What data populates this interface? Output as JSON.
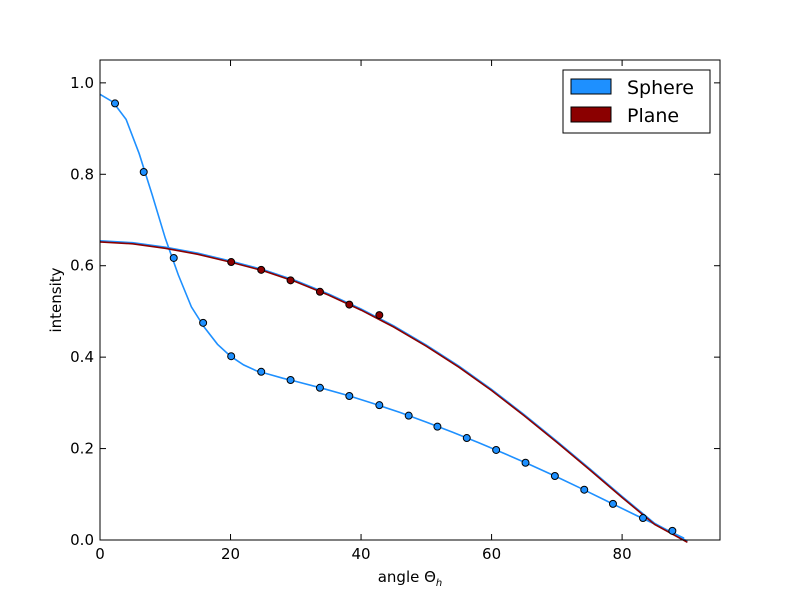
{
  "chart_data": {
    "type": "line",
    "title": "",
    "xlabel": "angle Θ",
    "xlabel_subscript": "h",
    "ylabel": "intensity",
    "xlim": [
      0,
      95
    ],
    "ylim": [
      0,
      1.05
    ],
    "xticks": [
      0,
      20,
      40,
      60,
      80
    ],
    "xtick_labels": [
      "0",
      "20",
      "40",
      "60",
      "80"
    ],
    "yticks": [
      0,
      0.2,
      0.4,
      0.6,
      0.8,
      1.0
    ],
    "ytick_labels": [
      "0.0",
      "0.2",
      "0.4",
      "0.6",
      "0.8",
      "1.0"
    ],
    "grid": false,
    "legend": "top-right",
    "series": [
      {
        "name": "Sphere",
        "color": "#1e90ff",
        "markers": [
          [
            2.3,
            0.955
          ],
          [
            6.7,
            0.805
          ],
          [
            11.3,
            0.617
          ],
          [
            15.8,
            0.475
          ],
          [
            20.1,
            0.402
          ],
          [
            24.7,
            0.368
          ],
          [
            29.2,
            0.35
          ],
          [
            33.7,
            0.333
          ],
          [
            38.2,
            0.315
          ],
          [
            42.8,
            0.295
          ],
          [
            47.3,
            0.272
          ],
          [
            51.7,
            0.248
          ],
          [
            56.2,
            0.223
          ],
          [
            60.7,
            0.197
          ],
          [
            65.2,
            0.169
          ],
          [
            69.7,
            0.14
          ],
          [
            74.2,
            0.11
          ],
          [
            78.6,
            0.079
          ],
          [
            83.2,
            0.048
          ],
          [
            87.7,
            0.02
          ]
        ],
        "curve": [
          [
            0,
            0.975
          ],
          [
            2,
            0.958
          ],
          [
            4,
            0.92
          ],
          [
            6,
            0.845
          ],
          [
            8,
            0.755
          ],
          [
            10,
            0.66
          ],
          [
            12,
            0.58
          ],
          [
            14,
            0.51
          ],
          [
            16,
            0.465
          ],
          [
            18,
            0.428
          ],
          [
            20,
            0.402
          ],
          [
            22,
            0.383
          ],
          [
            24,
            0.37
          ],
          [
            26,
            0.362
          ],
          [
            28,
            0.354
          ],
          [
            30,
            0.347
          ],
          [
            34,
            0.332
          ],
          [
            38,
            0.316
          ],
          [
            42,
            0.298
          ],
          [
            46,
            0.279
          ],
          [
            50,
            0.258
          ],
          [
            54,
            0.236
          ],
          [
            58,
            0.213
          ],
          [
            62,
            0.189
          ],
          [
            66,
            0.164
          ],
          [
            70,
            0.138
          ],
          [
            74,
            0.111
          ],
          [
            78,
            0.083
          ],
          [
            82,
            0.055
          ],
          [
            86,
            0.028
          ],
          [
            89.5,
            0.004
          ]
        ]
      },
      {
        "name": "Plane",
        "color": "#8b0000",
        "markers": [
          [
            20.1,
            0.608
          ],
          [
            24.7,
            0.591
          ],
          [
            29.2,
            0.568
          ],
          [
            33.7,
            0.543
          ],
          [
            38.2,
            0.515
          ],
          [
            42.8,
            0.492
          ]
        ],
        "curve": [
          [
            0,
            0.652
          ],
          [
            5,
            0.648
          ],
          [
            10,
            0.638
          ],
          [
            15,
            0.625
          ],
          [
            20,
            0.608
          ],
          [
            25,
            0.589
          ],
          [
            30,
            0.565
          ],
          [
            35,
            0.536
          ],
          [
            40,
            0.503
          ],
          [
            45,
            0.466
          ],
          [
            50,
            0.424
          ],
          [
            55,
            0.378
          ],
          [
            60,
            0.327
          ],
          [
            65,
            0.272
          ],
          [
            70,
            0.214
          ],
          [
            75,
            0.154
          ],
          [
            80,
            0.093
          ],
          [
            85,
            0.034
          ],
          [
            90,
            -0.005
          ]
        ]
      }
    ]
  }
}
